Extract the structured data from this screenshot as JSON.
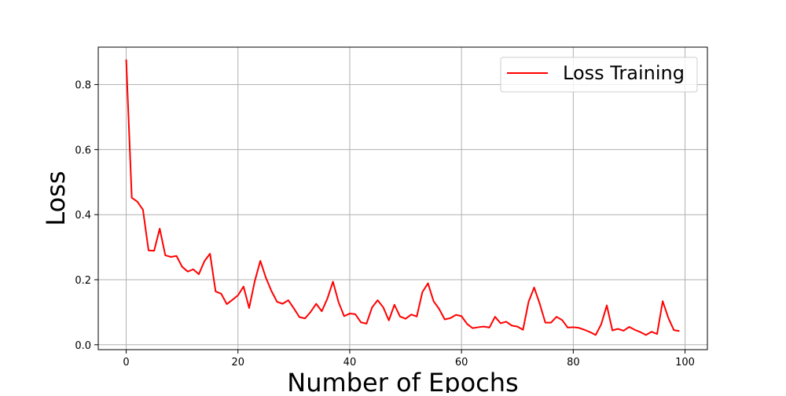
{
  "chart_data": {
    "type": "line",
    "xlabel": "Number of Epochs",
    "ylabel": "Loss",
    "xlim": [
      -5,
      104
    ],
    "ylim": [
      -0.015,
      0.915
    ],
    "xticks": [
      0,
      20,
      40,
      60,
      80,
      100
    ],
    "yticks": [
      0.0,
      0.2,
      0.4,
      0.6,
      0.8
    ],
    "xtick_labels": [
      "0",
      "20",
      "40",
      "60",
      "80",
      "100"
    ],
    "ytick_labels": [
      "0.0",
      "0.2",
      "0.4",
      "0.6",
      "0.8"
    ],
    "grid": true,
    "legend_position": "top-right",
    "series": [
      {
        "name": "Loss Training",
        "color": "#ff0000",
        "x": [
          0,
          1,
          2,
          3,
          4,
          5,
          6,
          7,
          8,
          9,
          10,
          11,
          12,
          13,
          14,
          15,
          16,
          17,
          18,
          19,
          20,
          21,
          22,
          23,
          24,
          25,
          26,
          27,
          28,
          29,
          30,
          31,
          32,
          33,
          34,
          35,
          36,
          37,
          38,
          39,
          40,
          41,
          42,
          43,
          44,
          45,
          46,
          47,
          48,
          49,
          50,
          51,
          52,
          53,
          54,
          55,
          56,
          57,
          58,
          59,
          60,
          61,
          62,
          63,
          64,
          65,
          66,
          67,
          68,
          69,
          70,
          71,
          72,
          73,
          74,
          75,
          76,
          77,
          78,
          79,
          80,
          81,
          82,
          83,
          84,
          85,
          86,
          87,
          88,
          89,
          90,
          91,
          92,
          93,
          94,
          95,
          96,
          97,
          98,
          99
        ],
        "values": [
          0.877,
          0.452,
          0.44,
          0.415,
          0.29,
          0.289,
          0.357,
          0.275,
          0.27,
          0.273,
          0.24,
          0.225,
          0.232,
          0.217,
          0.257,
          0.28,
          0.164,
          0.157,
          0.125,
          0.138,
          0.152,
          0.179,
          0.113,
          0.195,
          0.258,
          0.206,
          0.165,
          0.132,
          0.126,
          0.137,
          0.112,
          0.085,
          0.081,
          0.101,
          0.126,
          0.103,
          0.142,
          0.194,
          0.131,
          0.088,
          0.096,
          0.094,
          0.069,
          0.065,
          0.115,
          0.137,
          0.115,
          0.075,
          0.123,
          0.087,
          0.08,
          0.093,
          0.087,
          0.162,
          0.189,
          0.134,
          0.11,
          0.078,
          0.082,
          0.092,
          0.088,
          0.064,
          0.051,
          0.054,
          0.056,
          0.053,
          0.086,
          0.066,
          0.071,
          0.059,
          0.056,
          0.046,
          0.132,
          0.176,
          0.126,
          0.068,
          0.068,
          0.086,
          0.076,
          0.053,
          0.054,
          0.052,
          0.046,
          0.039,
          0.03,
          0.063,
          0.121,
          0.044,
          0.049,
          0.043,
          0.055,
          0.046,
          0.039,
          0.03,
          0.04,
          0.033,
          0.134,
          0.083,
          0.045,
          0.042
        ]
      }
    ]
  }
}
